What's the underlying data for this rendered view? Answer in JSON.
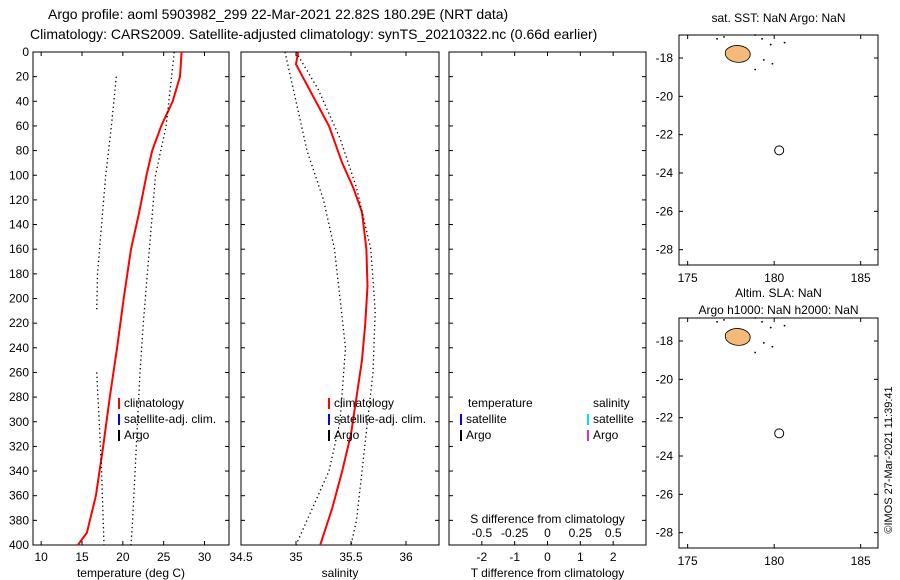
{
  "title": {
    "line1": "Argo profile: aoml 5903982_299 22-Mar-2021 22.82S 180.29E (NRT data)",
    "line2": "Climatology: CARS2009. Satellite-adjusted climatology: synTS_20210322.nc (0.66d earlier)"
  },
  "colors": {
    "climatology": "#ff0000",
    "satellite_adj": "#0000ff",
    "argo": "#000000",
    "sat_salinity": "#00e5e5",
    "argo_salinity": "#cc33cc",
    "land": "#f5b97a"
  },
  "chart_data": [
    {
      "type": "line",
      "id": "temperature-panel",
      "xlabel": "temperature (deg C)",
      "ylabel": "",
      "xlim": [
        9,
        33
      ],
      "ylim": [
        400,
        0
      ],
      "xticks": [
        10,
        15,
        20,
        25,
        30
      ],
      "yticks": [
        0,
        20,
        40,
        60,
        80,
        100,
        120,
        140,
        160,
        180,
        200,
        220,
        240,
        260,
        280,
        300,
        320,
        340,
        360,
        380,
        400
      ],
      "legend": {
        "placement": "center",
        "entries": [
          "climatology",
          "satellite-adj. clim.",
          "Argo"
        ]
      },
      "series": [
        {
          "name": "climatology",
          "color": "#ff0000",
          "style": "solid",
          "points": [
            [
              27.2,
              0
            ],
            [
              27.0,
              20
            ],
            [
              26.1,
              40
            ],
            [
              24.7,
              60
            ],
            [
              23.6,
              80
            ],
            [
              22.9,
              100
            ],
            [
              22.0,
              130
            ],
            [
              21.0,
              160
            ],
            [
              20.1,
              200
            ],
            [
              19.3,
              240
            ],
            [
              18.4,
              280
            ],
            [
              17.6,
              320
            ],
            [
              16.7,
              360
            ],
            [
              15.6,
              390
            ],
            [
              14.5,
              400
            ]
          ]
        },
        {
          "name": "climatology std (upper)",
          "color": "#000000",
          "style": "dotted",
          "points": [
            [
              26.3,
              0
            ],
            [
              25.3,
              60
            ],
            [
              24.0,
              100
            ],
            [
              23.5,
              140
            ],
            [
              23.0,
              180
            ],
            [
              22.5,
              220
            ],
            [
              22.1,
              260
            ],
            [
              21.8,
              300
            ],
            [
              21.5,
              340
            ],
            [
              21.2,
              380
            ],
            [
              21.0,
              400
            ]
          ]
        },
        {
          "name": "climatology std (lower)",
          "color": "#000000",
          "style": "dotted",
          "points": [
            [
              19.2,
              20
            ],
            [
              18.6,
              60
            ],
            [
              17.9,
              100
            ],
            [
              17.4,
              140
            ],
            [
              16.9,
              180
            ],
            [
              16.8,
              210
            ]
          ]
        },
        {
          "name": "climatology std (deep)",
          "color": "#000000",
          "style": "dotted",
          "points": [
            [
              16.8,
              260
            ],
            [
              17.1,
              300
            ],
            [
              17.4,
              340
            ],
            [
              17.6,
              380
            ],
            [
              17.7,
              400
            ]
          ]
        }
      ]
    },
    {
      "type": "line",
      "id": "salinity-panel",
      "xlabel": "salinity",
      "ylabel": "",
      "xlim": [
        34.5,
        36.3
      ],
      "ylim": [
        400,
        0
      ],
      "xticks": [
        34.5,
        35,
        35.5,
        36
      ],
      "yticks": [
        0,
        20,
        40,
        60,
        80,
        100,
        120,
        140,
        160,
        180,
        200,
        220,
        240,
        260,
        280,
        300,
        320,
        340,
        360,
        380,
        400
      ],
      "legend": {
        "placement": "center",
        "entries": [
          "climatology",
          "satellite-adj. clim.",
          "Argo"
        ]
      },
      "series": [
        {
          "name": "climatology",
          "color": "#ff0000",
          "style": "solid",
          "points": [
            [
              35.02,
              0
            ],
            [
              35.0,
              10
            ],
            [
              35.12,
              30
            ],
            [
              35.3,
              60
            ],
            [
              35.42,
              90
            ],
            [
              35.52,
              110
            ],
            [
              35.6,
              130
            ],
            [
              35.64,
              160
            ],
            [
              35.65,
              190
            ],
            [
              35.63,
              220
            ],
            [
              35.6,
              250
            ],
            [
              35.55,
              280
            ],
            [
              35.5,
              310
            ],
            [
              35.42,
              340
            ],
            [
              35.33,
              370
            ],
            [
              35.22,
              400
            ]
          ]
        },
        {
          "name": "climatology std (right)",
          "color": "#000000",
          "style": "dotted",
          "points": [
            [
              35.0,
              0
            ],
            [
              35.2,
              30
            ],
            [
              35.4,
              70
            ],
            [
              35.55,
              110
            ],
            [
              35.68,
              160
            ],
            [
              35.72,
              210
            ],
            [
              35.7,
              260
            ],
            [
              35.65,
              300
            ],
            [
              35.6,
              340
            ],
            [
              35.55,
              380
            ],
            [
              35.5,
              400
            ]
          ]
        },
        {
          "name": "climatology std (left)",
          "color": "#000000",
          "style": "dotted",
          "points": [
            [
              34.9,
              0
            ],
            [
              35.0,
              40
            ],
            [
              35.1,
              80
            ],
            [
              35.25,
              120
            ],
            [
              35.35,
              160
            ],
            [
              35.4,
              200
            ],
            [
              35.45,
              240
            ],
            [
              35.4,
              300
            ],
            [
              35.3,
              340
            ],
            [
              35.1,
              380
            ],
            [
              35.0,
              400
            ]
          ]
        }
      ]
    },
    {
      "type": "line",
      "id": "difference-panel",
      "xlabel": "T difference from climatology",
      "secondary_xlabel": "S difference from climatology",
      "xlim": [
        -3,
        3
      ],
      "ylim": [
        400,
        0
      ],
      "xticks": [
        -2,
        -1,
        0,
        1,
        2
      ],
      "xtick_labels": [
        "-2",
        "-1",
        "0",
        "1",
        "2"
      ],
      "secondary_xticks": [
        -2,
        -1,
        0,
        1,
        2
      ],
      "secondary_xtick_labels": [
        "-0.5",
        "-0.25",
        "0",
        "0.25",
        "0.5"
      ],
      "legend": {
        "placement": "center",
        "groups": [
          {
            "header": "temperature",
            "entries": [
              "satellite",
              "Argo"
            ]
          },
          {
            "header": "salinity",
            "entries": [
              "satellite",
              "Argo"
            ]
          }
        ]
      },
      "series": []
    },
    {
      "type": "scatter",
      "id": "map-sst",
      "title": "sat. SST: NaN Argo: NaN",
      "xlim": [
        174.5,
        186
      ],
      "ylim": [
        -28.8,
        -16.8
      ],
      "xticks": [
        175,
        180,
        185
      ],
      "yticks": [
        -18,
        -20,
        -22,
        -24,
        -26,
        -28
      ],
      "xtick_labels": [
        "175",
        "180",
        "185"
      ],
      "ytick_labels": [
        "-18",
        "-20",
        "-22",
        "-24",
        "-26",
        "-28"
      ],
      "points": [
        {
          "lon": 180.29,
          "lat": -22.82,
          "label": "profile location"
        }
      ]
    },
    {
      "type": "scatter",
      "id": "map-sla",
      "title": "Altim. SLA: NaN",
      "subtitle": "Argo h1000: NaN h2000: NaN",
      "xlim": [
        174.5,
        186
      ],
      "ylim": [
        -28.8,
        -16.8
      ],
      "xticks": [
        175,
        180,
        185
      ],
      "yticks": [
        -18,
        -20,
        -22,
        -24,
        -26,
        -28
      ],
      "xtick_labels": [
        "175",
        "180",
        "185"
      ],
      "ytick_labels": [
        "-18",
        "-20",
        "-22",
        "-24",
        "-26",
        "-28"
      ],
      "points": [
        {
          "lon": 180.29,
          "lat": -22.82,
          "label": "profile location"
        }
      ]
    }
  ],
  "legend_labels": {
    "climatology": "climatology",
    "satellite_adj": "satellite-adj. clim.",
    "argo": "Argo",
    "temperature": "temperature",
    "salinity": "salinity",
    "satellite": "satellite"
  },
  "footer": "©IMOS 27-Mar-2021 11:39:41"
}
